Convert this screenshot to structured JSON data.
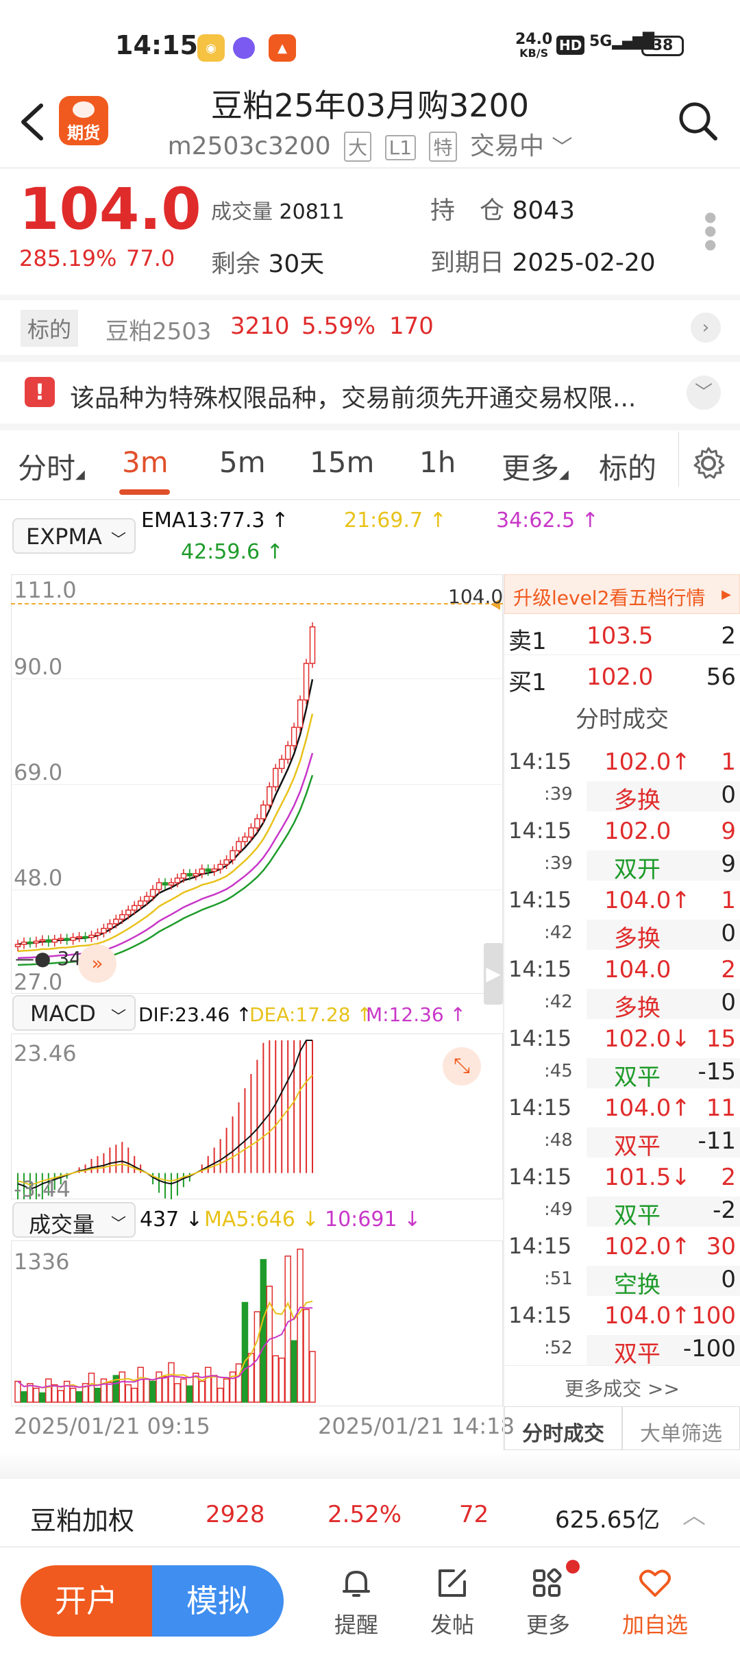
{
  "status": {
    "time": "14:15",
    "net_speed": "24.0",
    "net_unit": "KB/S",
    "hd": "HD",
    "signal": "5G",
    "battery": "38"
  },
  "header": {
    "app_badge": "期货",
    "title": "豆粕25年03月购3200",
    "code": "m2503c3200",
    "tags": [
      "大",
      "L1",
      "特"
    ],
    "trade_state": "交易中"
  },
  "quote": {
    "price": "104.0",
    "change_pct": "285.19%",
    "change": "77.0",
    "volume_label": "成交量",
    "volume": "20811",
    "remain_label": "剩余",
    "remain": "30天",
    "oi_label": "持　仓",
    "oi": "8043",
    "expire_label": "到期日",
    "expire": "2025-02-20"
  },
  "underlying": {
    "label": "标的",
    "name": "豆粕2503",
    "price": "3210",
    "pct": "5.59%",
    "chg": "170"
  },
  "notice": {
    "text": "该品种为特殊权限品种，交易前须先开通交易权限..."
  },
  "tabs": {
    "items": [
      "分时",
      "3m",
      "5m",
      "15m",
      "1h",
      "更多",
      "标的"
    ]
  },
  "indicators": {
    "expma_select": "EXPMA",
    "ema13": "EMA13:77.3",
    "ema21": "21:69.7",
    "ema34": "34:62.5",
    "ema42": "42:59.6",
    "macd_select": "MACD",
    "dif": "DIF:23.46",
    "dea": "DEA:17.28",
    "m": "M:12.36",
    "vol_select": "成交量",
    "vol": "437",
    "ma5": "MA5:646",
    "ma10": "10:691"
  },
  "price_axis": [
    "111.0",
    "90.0",
    "69.0",
    "48.0",
    "27.0"
  ],
  "price_marker": "104.0",
  "low_marker": "34.0",
  "macd_axis": [
    "23.46",
    "-3.44"
  ],
  "vol_axis": [
    "1336"
  ],
  "time_axis": [
    "2025/01/21 09:15",
    "2025/01/21 14:18"
  ],
  "colors": {
    "up": "#e02b2b",
    "down": "#1e9b2a",
    "ema13": "#111111",
    "ema21": "#e8c21a",
    "ema34": "#c837c8",
    "ema42": "#1e9b2a",
    "accent": "#f05a1e"
  },
  "book": {
    "upgrade": "升级level2看五档行情",
    "ask_label": "卖1",
    "ask_price": "103.5",
    "ask_vol": "2",
    "bid_label": "买1",
    "bid_price": "102.0",
    "bid_vol": "56",
    "ticks_title": "分时成交",
    "ticks": [
      {
        "time": "14:15",
        "sec": ":39",
        "price": "102.0↑",
        "vol": "1",
        "type": "多换",
        "oi": "0",
        "pc": "red",
        "tc": "red"
      },
      {
        "time": "14:15",
        "sec": ":39",
        "price": "102.0",
        "vol": "9",
        "type": "双开",
        "oi": "9",
        "pc": "red",
        "tc": "green"
      },
      {
        "time": "14:15",
        "sec": ":42",
        "price": "104.0↑",
        "vol": "1",
        "type": "多换",
        "oi": "0",
        "pc": "red",
        "tc": "red"
      },
      {
        "time": "14:15",
        "sec": ":42",
        "price": "104.0",
        "vol": "2",
        "type": "多换",
        "oi": "0",
        "pc": "red",
        "tc": "red"
      },
      {
        "time": "14:15",
        "sec": ":45",
        "price": "102.0↓",
        "vol": "15",
        "type": "双平",
        "oi": "-15",
        "pc": "red",
        "tc": "green"
      },
      {
        "time": "14:15",
        "sec": ":48",
        "price": "104.0↑",
        "vol": "11",
        "type": "双平",
        "oi": "-11",
        "pc": "red",
        "tc": "red"
      },
      {
        "time": "14:15",
        "sec": ":49",
        "price": "101.5↓",
        "vol": "2",
        "type": "双平",
        "oi": "-2",
        "pc": "red",
        "tc": "green"
      },
      {
        "time": "14:15",
        "sec": ":51",
        "price": "102.0↑",
        "vol": "30",
        "type": "空换",
        "oi": "0",
        "pc": "red",
        "tc": "green"
      },
      {
        "time": "14:15",
        "sec": ":52",
        "price": "104.0↑",
        "vol": "100",
        "type": "双平",
        "oi": "-100",
        "pc": "red",
        "tc": "red"
      }
    ],
    "more": "更多成交 >>",
    "tab1": "分时成交",
    "tab2": "大单筛选"
  },
  "index_bar": {
    "name": "豆粕加权",
    "price": "2928",
    "pct": "2.52%",
    "chg": "72",
    "amount": "625.65亿"
  },
  "bottom": {
    "open": "开户",
    "sim": "模拟",
    "remind": "提醒",
    "post": "发帖",
    "more": "更多",
    "fav": "加自选"
  },
  "chart_data": [
    {
      "type": "candlestick",
      "title": "",
      "ylim": [
        27.0,
        111.0
      ],
      "ticks": [
        "111.0",
        "90.0",
        "69.0",
        "48.0",
        "27.0"
      ],
      "close": [
        34.5,
        35,
        34.8,
        35.2,
        35.5,
        35,
        35.6,
        35.8,
        35.4,
        36,
        36.2,
        36,
        36.5,
        37,
        38,
        39,
        40,
        41,
        42,
        43,
        44,
        45,
        46.5,
        48,
        47.5,
        48,
        49,
        50,
        49.5,
        50,
        51,
        50.5,
        51,
        52,
        53,
        55,
        57,
        58,
        60,
        62,
        65,
        69,
        73,
        75,
        78,
        82,
        88,
        96,
        104
      ],
      "series": [
        {
          "name": "EMA13",
          "values": [
            77.3
          ]
        },
        {
          "name": "21",
          "values": [
            69.7
          ]
        },
        {
          "name": "34",
          "values": [
            62.5
          ]
        },
        {
          "name": "42",
          "values": [
            59.6
          ]
        }
      ]
    },
    {
      "type": "bar",
      "title": "",
      "ylim": [
        -3.44,
        23.46
      ],
      "values": [
        -1,
        -1.2,
        -1.5,
        -1.3,
        -1,
        -0.8,
        -0.6,
        -0.4,
        -0.2,
        0,
        0.2,
        0.3,
        0.5,
        0.6,
        0.7,
        0.9,
        1,
        1.1,
        0.9,
        0.6,
        0.3,
        0,
        -0.4,
        -0.7,
        -0.9,
        -1,
        -0.8,
        -0.5,
        -0.3,
        0,
        0.3,
        0.6,
        0.9,
        1.2,
        1.6,
        2,
        2.5,
        3,
        3.5,
        4,
        4.6,
        5.2,
        6,
        7,
        8,
        9,
        10.5,
        11.5,
        12.36
      ]
    },
    {
      "type": "bar",
      "title": "",
      "ylim": [
        0,
        1336
      ],
      "values": [
        180,
        90,
        160,
        120,
        80,
        200,
        150,
        100,
        180,
        120,
        90,
        160,
        250,
        120,
        200,
        170,
        230,
        260,
        150,
        120,
        300,
        200,
        180,
        260,
        220,
        340,
        160,
        200,
        140,
        250,
        180,
        300,
        230,
        120,
        200,
        260,
        330,
        860,
        420,
        780,
        1230,
        1000,
        400,
        380,
        1260,
        530,
        1320,
        800,
        437
      ]
    }
  ]
}
